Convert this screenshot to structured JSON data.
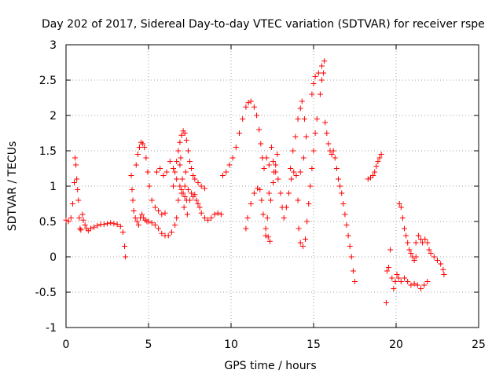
{
  "chart_data": {
    "type": "scatter",
    "title": "Day 202 of 2017, Sidereal Day-to-day VTEC variation (SDTVAR) for receiver rspe",
    "xlabel": "GPS time / hours",
    "ylabel": "SDTVAR / TECUs",
    "xlim": [
      0,
      25
    ],
    "ylim": [
      -1,
      3
    ],
    "xticks": [
      "0",
      "5",
      "10",
      "15",
      "20",
      "25"
    ],
    "xtick_values": [
      0,
      5,
      10,
      15,
      20,
      25
    ],
    "yticks": [
      "-1",
      "-0.5",
      "0",
      "0.5",
      "1",
      "1.5",
      "2",
      "2.5",
      "3"
    ],
    "ytick_values": [
      -1,
      -0.5,
      0,
      0.5,
      1,
      1.5,
      2,
      2.5,
      3
    ],
    "grid": true,
    "marker": "+",
    "series_color": "#ff0000",
    "series": [
      {
        "name": "SDTVAR",
        "points": [
          [
            0.0,
            0.52
          ],
          [
            0.15,
            0.5
          ],
          [
            0.3,
            0.55
          ],
          [
            0.4,
            0.75
          ],
          [
            0.5,
            1.05
          ],
          [
            0.55,
            1.4
          ],
          [
            0.6,
            1.3
          ],
          [
            0.65,
            1.1
          ],
          [
            0.7,
            0.95
          ],
          [
            0.75,
            0.8
          ],
          [
            0.8,
            0.55
          ],
          [
            0.85,
            0.4
          ],
          [
            0.9,
            0.38
          ],
          [
            1.0,
            0.6
          ],
          [
            1.05,
            0.52
          ],
          [
            1.15,
            0.45
          ],
          [
            1.25,
            0.4
          ],
          [
            1.35,
            0.37
          ],
          [
            1.5,
            0.4
          ],
          [
            1.7,
            0.42
          ],
          [
            1.9,
            0.44
          ],
          [
            2.1,
            0.46
          ],
          [
            2.3,
            0.46
          ],
          [
            2.5,
            0.47
          ],
          [
            2.7,
            0.48
          ],
          [
            2.9,
            0.47
          ],
          [
            3.1,
            0.46
          ],
          [
            3.3,
            0.43
          ],
          [
            3.45,
            0.35
          ],
          [
            3.55,
            0.15
          ],
          [
            3.6,
            0.0
          ],
          [
            3.95,
            1.15
          ],
          [
            4.0,
            0.95
          ],
          [
            4.05,
            0.8
          ],
          [
            4.1,
            0.65
          ],
          [
            4.2,
            0.55
          ],
          [
            4.3,
            0.5
          ],
          [
            4.4,
            0.45
          ],
          [
            4.5,
            0.55
          ],
          [
            4.6,
            0.6
          ],
          [
            4.7,
            0.55
          ],
          [
            4.8,
            0.52
          ],
          [
            4.9,
            0.5
          ],
          [
            5.0,
            0.5
          ],
          [
            5.2,
            0.48
          ],
          [
            5.4,
            0.45
          ],
          [
            5.6,
            0.4
          ],
          [
            5.8,
            0.33
          ],
          [
            6.0,
            0.3
          ],
          [
            6.2,
            0.3
          ],
          [
            6.4,
            0.35
          ],
          [
            6.6,
            0.45
          ],
          [
            6.7,
            0.55
          ],
          [
            4.25,
            1.3
          ],
          [
            4.35,
            1.45
          ],
          [
            4.45,
            1.55
          ],
          [
            4.55,
            1.62
          ],
          [
            4.65,
            1.6
          ],
          [
            4.75,
            1.55
          ],
          [
            4.85,
            1.4
          ],
          [
            4.95,
            1.2
          ],
          [
            5.05,
            1.0
          ],
          [
            5.2,
            0.8
          ],
          [
            5.4,
            0.7
          ],
          [
            5.6,
            0.65
          ],
          [
            5.8,
            0.6
          ],
          [
            6.0,
            0.62
          ],
          [
            5.5,
            1.2
          ],
          [
            5.7,
            1.25
          ],
          [
            5.9,
            1.15
          ],
          [
            6.1,
            1.2
          ],
          [
            6.3,
            1.35
          ],
          [
            6.5,
            1.25
          ],
          [
            6.7,
            1.1
          ],
          [
            6.9,
            1.0
          ],
          [
            7.0,
            0.95
          ],
          [
            7.1,
            0.9
          ],
          [
            7.2,
            0.85
          ],
          [
            7.3,
            0.8
          ],
          [
            7.5,
            0.8
          ],
          [
            7.7,
            0.85
          ],
          [
            7.9,
            0.8
          ],
          [
            8.0,
            0.75
          ],
          [
            8.1,
            0.7
          ],
          [
            8.2,
            0.62
          ],
          [
            8.4,
            0.55
          ],
          [
            8.6,
            0.52
          ],
          [
            8.8,
            0.55
          ],
          [
            9.0,
            0.6
          ],
          [
            9.2,
            0.62
          ],
          [
            9.4,
            0.6
          ],
          [
            6.5,
            1.0
          ],
          [
            6.6,
            1.2
          ],
          [
            6.7,
            1.35
          ],
          [
            6.8,
            1.5
          ],
          [
            6.9,
            1.62
          ],
          [
            7.0,
            1.72
          ],
          [
            7.1,
            1.78
          ],
          [
            7.2,
            1.75
          ],
          [
            7.3,
            1.65
          ],
          [
            7.4,
            1.5
          ],
          [
            7.5,
            1.35
          ],
          [
            7.6,
            1.25
          ],
          [
            7.7,
            1.15
          ],
          [
            7.8,
            1.1
          ],
          [
            8.0,
            1.05
          ],
          [
            8.2,
            1.0
          ],
          [
            8.4,
            0.97
          ],
          [
            6.8,
            0.8
          ],
          [
            7.0,
            0.9
          ],
          [
            7.2,
            1.0
          ],
          [
            7.4,
            0.95
          ],
          [
            7.6,
            0.9
          ],
          [
            7.8,
            0.88
          ],
          [
            6.9,
            1.3
          ],
          [
            7.05,
            1.1
          ],
          [
            7.15,
            0.7
          ],
          [
            7.25,
            1.2
          ],
          [
            7.35,
            0.6
          ],
          [
            6.95,
            1.4
          ],
          [
            9.5,
            1.15
          ],
          [
            9.7,
            1.2
          ],
          [
            9.9,
            1.3
          ],
          [
            10.1,
            1.4
          ],
          [
            10.3,
            1.55
          ],
          [
            10.5,
            1.75
          ],
          [
            10.7,
            1.95
          ],
          [
            10.9,
            2.12
          ],
          [
            11.05,
            2.18
          ],
          [
            11.2,
            2.2
          ],
          [
            11.4,
            2.12
          ],
          [
            11.55,
            2.0
          ],
          [
            11.7,
            1.8
          ],
          [
            11.8,
            1.6
          ],
          [
            11.9,
            1.4
          ],
          [
            10.9,
            0.4
          ],
          [
            11.0,
            0.55
          ],
          [
            11.2,
            0.75
          ],
          [
            11.4,
            0.9
          ],
          [
            11.6,
            0.97
          ],
          [
            11.75,
            0.95
          ],
          [
            11.85,
            0.8
          ],
          [
            11.95,
            0.6
          ],
          [
            12.1,
            0.4
          ],
          [
            12.25,
            0.28
          ],
          [
            12.35,
            0.22
          ],
          [
            12.0,
            1.25
          ],
          [
            12.15,
            1.4
          ],
          [
            12.3,
            1.3
          ],
          [
            12.45,
            1.55
          ],
          [
            12.55,
            1.35
          ],
          [
            12.7,
            1.2
          ],
          [
            12.85,
            1.1
          ],
          [
            13.0,
            0.9
          ],
          [
            13.1,
            0.7
          ],
          [
            13.2,
            0.55
          ],
          [
            13.35,
            0.7
          ],
          [
            13.5,
            0.9
          ],
          [
            13.65,
            1.1
          ],
          [
            13.8,
            1.2
          ],
          [
            13.95,
            1.15
          ],
          [
            14.05,
            0.8
          ],
          [
            14.1,
            0.4
          ],
          [
            14.2,
            0.2
          ],
          [
            14.35,
            0.15
          ],
          [
            14.5,
            0.25
          ],
          [
            14.6,
            0.5
          ],
          [
            14.7,
            0.75
          ],
          [
            14.8,
            1.0
          ],
          [
            14.9,
            1.25
          ],
          [
            15.0,
            1.5
          ],
          [
            15.1,
            1.75
          ],
          [
            15.2,
            1.95
          ],
          [
            12.1,
            0.3
          ],
          [
            12.2,
            0.55
          ],
          [
            12.4,
            0.8
          ],
          [
            12.55,
            1.05
          ],
          [
            12.7,
            1.3
          ],
          [
            12.8,
            1.45
          ],
          [
            12.6,
            1.2
          ],
          [
            12.3,
            0.9
          ],
          [
            13.6,
            1.25
          ],
          [
            13.75,
            1.5
          ],
          [
            13.9,
            1.7
          ],
          [
            14.05,
            1.95
          ],
          [
            14.2,
            2.1
          ],
          [
            14.3,
            2.2
          ],
          [
            14.45,
            1.95
          ],
          [
            14.55,
            1.7
          ],
          [
            14.4,
            1.4
          ],
          [
            14.2,
            1.2
          ],
          [
            14.9,
            2.3
          ],
          [
            15.0,
            2.45
          ],
          [
            15.1,
            2.55
          ],
          [
            15.3,
            2.6
          ],
          [
            15.5,
            2.7
          ],
          [
            15.65,
            2.77
          ],
          [
            15.6,
            2.6
          ],
          [
            15.5,
            2.5
          ],
          [
            15.4,
            2.3
          ],
          [
            15.7,
            1.9
          ],
          [
            15.8,
            1.75
          ],
          [
            15.9,
            1.6
          ],
          [
            16.0,
            1.5
          ],
          [
            16.1,
            1.45
          ],
          [
            16.2,
            1.5
          ],
          [
            16.3,
            1.4
          ],
          [
            16.4,
            1.25
          ],
          [
            16.5,
            1.1
          ],
          [
            16.6,
            1.0
          ],
          [
            16.7,
            0.9
          ],
          [
            16.8,
            0.75
          ],
          [
            16.9,
            0.6
          ],
          [
            17.0,
            0.45
          ],
          [
            17.1,
            0.3
          ],
          [
            17.2,
            0.15
          ],
          [
            17.3,
            0.0
          ],
          [
            17.4,
            -0.2
          ],
          [
            17.5,
            -0.35
          ],
          [
            18.3,
            1.1
          ],
          [
            18.45,
            1.12
          ],
          [
            18.6,
            1.15
          ],
          [
            18.7,
            1.2
          ],
          [
            18.8,
            1.28
          ],
          [
            18.9,
            1.35
          ],
          [
            19.0,
            1.4
          ],
          [
            19.1,
            1.45
          ],
          [
            19.4,
            -0.65
          ],
          [
            19.45,
            -0.2
          ],
          [
            19.55,
            -0.15
          ],
          [
            19.65,
            0.1
          ],
          [
            19.75,
            -0.3
          ],
          [
            19.85,
            -0.45
          ],
          [
            19.95,
            -0.35
          ],
          [
            20.05,
            -0.25
          ],
          [
            20.15,
            -0.3
          ],
          [
            20.3,
            -0.35
          ],
          [
            20.5,
            -0.3
          ],
          [
            20.7,
            -0.35
          ],
          [
            20.9,
            -0.4
          ],
          [
            21.1,
            -0.38
          ],
          [
            21.3,
            -0.4
          ],
          [
            21.5,
            -0.45
          ],
          [
            21.7,
            -0.4
          ],
          [
            21.9,
            -0.35
          ],
          [
            20.2,
            0.75
          ],
          [
            20.3,
            0.7
          ],
          [
            20.4,
            0.55
          ],
          [
            20.5,
            0.4
          ],
          [
            20.6,
            0.3
          ],
          [
            20.7,
            0.2
          ],
          [
            20.8,
            0.1
          ],
          [
            20.9,
            0.05
          ],
          [
            21.0,
            0.0
          ],
          [
            21.1,
            -0.05
          ],
          [
            21.2,
            0.0
          ],
          [
            21.2,
            0.2
          ],
          [
            21.35,
            0.3
          ],
          [
            21.5,
            0.25
          ],
          [
            21.6,
            0.2
          ],
          [
            21.75,
            0.25
          ],
          [
            21.9,
            0.2
          ],
          [
            22.0,
            0.1
          ],
          [
            22.1,
            0.05
          ],
          [
            22.3,
            0.0
          ],
          [
            22.5,
            -0.05
          ],
          [
            22.7,
            -0.1
          ],
          [
            22.85,
            -0.18
          ],
          [
            22.9,
            -0.25
          ]
        ]
      }
    ]
  }
}
